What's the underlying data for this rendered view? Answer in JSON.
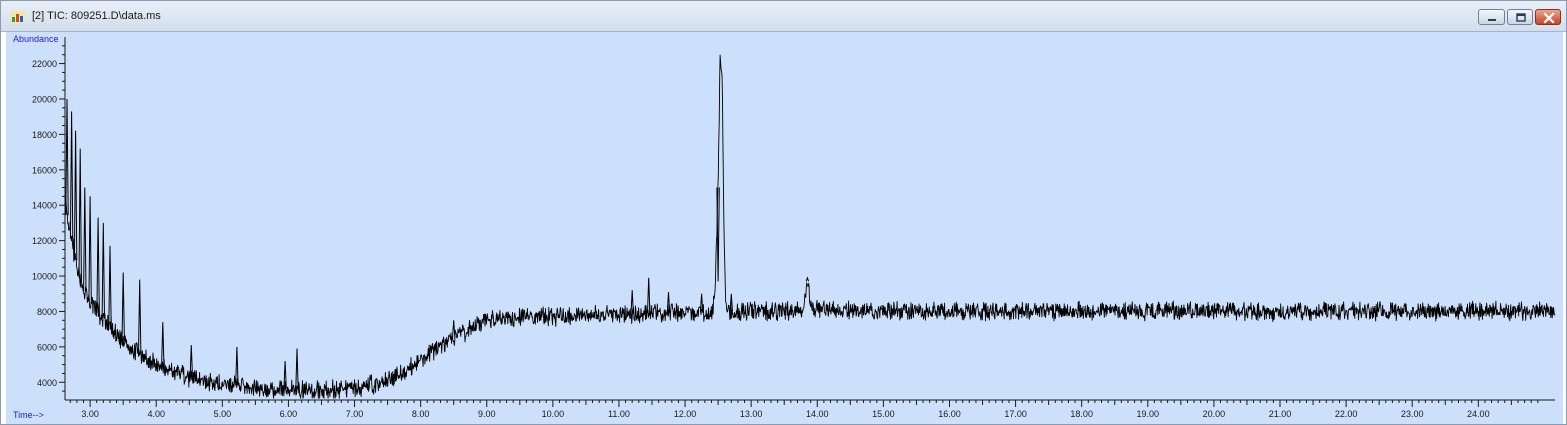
{
  "window": {
    "title": "[2] TIC: 809251.D\\data.ms",
    "icon": "chromatogram-app-icon",
    "controls": [
      "minimize-icon",
      "restore-icon",
      "close-icon"
    ]
  },
  "colors": {
    "plot_background": "#cce0fb",
    "trace": "#000000",
    "axis_label": "#1e1ed2",
    "close_button": "#c5432a"
  },
  "chart_data": {
    "type": "line",
    "title": "",
    "xlabel": "Time-->",
    "ylabel": "Abundance",
    "xlim": [
      2.62,
      25.16
    ],
    "ylim": [
      3000,
      23500
    ],
    "grid": false,
    "x_ticks": [
      3.0,
      4.0,
      5.0,
      6.0,
      7.0,
      8.0,
      9.0,
      10.0,
      11.0,
      12.0,
      13.0,
      14.0,
      15.0,
      16.0,
      17.0,
      18.0,
      19.0,
      20.0,
      21.0,
      22.0,
      23.0,
      24.0
    ],
    "x_tick_labels": [
      "3.00",
      "4.00",
      "5.00",
      "6.00",
      "7.00",
      "8.00",
      "9.00",
      "10.00",
      "11.00",
      "12.00",
      "13.00",
      "14.00",
      "15.00",
      "16.00",
      "17.00",
      "18.00",
      "19.00",
      "20.00",
      "21.00",
      "22.00",
      "23.00",
      "24.00"
    ],
    "y_ticks": [
      4000,
      6000,
      8000,
      10000,
      12000,
      14000,
      16000,
      18000,
      20000,
      22000
    ],
    "y_tick_labels": [
      "4000",
      "6000",
      "8000",
      "10000",
      "12000",
      "14000",
      "16000",
      "18000",
      "20000",
      "22000"
    ],
    "series": [
      {
        "x": [
          2.62,
          2.7,
          2.8,
          2.9,
          3.0,
          3.2,
          3.4,
          3.6,
          3.8,
          4.0,
          4.3,
          4.6,
          5.0,
          5.5,
          6.0,
          6.5,
          7.0,
          7.3,
          7.6,
          7.9,
          8.2,
          8.5,
          8.8,
          9.0,
          9.3,
          9.6,
          10.0,
          10.5,
          11.0,
          11.5,
          12.0,
          12.4,
          12.45,
          12.5,
          12.53,
          12.56,
          12.59,
          12.62,
          12.66,
          12.7,
          13.0,
          13.5,
          13.8,
          13.85,
          13.9,
          14.5,
          15.0,
          16.0,
          17.0,
          18.0,
          19.0,
          20.0,
          21.0,
          22.0,
          23.0,
          24.0,
          25.0,
          25.16
        ],
        "y": [
          14000,
          12500,
          10500,
          9300,
          8600,
          7600,
          6700,
          6000,
          5400,
          5000,
          4600,
          4200,
          3900,
          3700,
          3600,
          3550,
          3700,
          3900,
          4300,
          5000,
          5800,
          6500,
          7100,
          7500,
          7600,
          7700,
          7700,
          7800,
          7850,
          7900,
          7950,
          7950,
          8800,
          15000,
          22600,
          21500,
          12000,
          8300,
          8100,
          8000,
          8000,
          8000,
          8100,
          9700,
          8200,
          8050,
          8000,
          8050,
          8000,
          8050,
          8000,
          8050,
          8000,
          8050,
          8000,
          8050,
          8000,
          8000
        ],
        "spikes": [
          {
            "x": 2.65,
            "y": 20000
          },
          {
            "x": 2.72,
            "y": 19300
          },
          {
            "x": 2.78,
            "y": 18200
          },
          {
            "x": 2.85,
            "y": 17200
          },
          {
            "x": 2.92,
            "y": 15000
          },
          {
            "x": 3.0,
            "y": 14500
          },
          {
            "x": 3.12,
            "y": 13300
          },
          {
            "x": 3.2,
            "y": 13000
          },
          {
            "x": 3.3,
            "y": 11700
          },
          {
            "x": 3.5,
            "y": 10200
          },
          {
            "x": 3.75,
            "y": 9800
          },
          {
            "x": 4.1,
            "y": 7400
          },
          {
            "x": 4.53,
            "y": 6100
          },
          {
            "x": 5.22,
            "y": 6000
          },
          {
            "x": 5.95,
            "y": 5200
          },
          {
            "x": 6.13,
            "y": 5900
          },
          {
            "x": 8.5,
            "y": 7500
          },
          {
            "x": 11.2,
            "y": 9200
          },
          {
            "x": 11.45,
            "y": 9900
          },
          {
            "x": 11.75,
            "y": 9100
          },
          {
            "x": 12.25,
            "y": 9000
          },
          {
            "x": 12.5,
            "y": 9700
          },
          {
            "x": 12.7,
            "y": 9000
          },
          {
            "x": 13.85,
            "y": 9900
          }
        ]
      }
    ]
  }
}
